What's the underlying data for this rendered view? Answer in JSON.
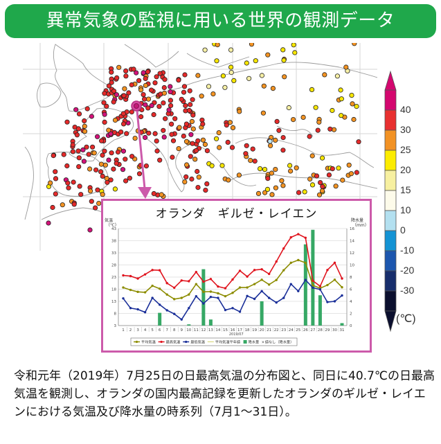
{
  "header": {
    "title": "異常気象の監視に用いる世界の観測データ",
    "color": "#1fa84b"
  },
  "map": {
    "description": "2019-07-25 daily maximum temperature station distribution over Europe",
    "highlight_station": "オランダ ギルゼ・レイエン",
    "highlight_color": "#cc3d99",
    "arrow_color": "#cc5aaa"
  },
  "colorbar": {
    "unit": "(℃)",
    "labels": [
      "40",
      "30",
      "25",
      "20",
      "15",
      "10",
      "0",
      "-10",
      "-20",
      "-30"
    ],
    "colors": [
      "#d4076f",
      "#e83030",
      "#f29224",
      "#fcec00",
      "#f7f0a0",
      "#fdfbea",
      "#b3e0f0",
      "#1493d4",
      "#1c56ae",
      "#172e6c",
      "#0b0f2e"
    ]
  },
  "inset": {
    "title": "オランダ　ギルゼ・レイエン",
    "left_axis_label": "気温\n（℃）",
    "right_axis_label": "降水量\n（mm）",
    "x_sublabel": "2019/07",
    "legend": [
      {
        "label": "平均気温",
        "color": "#8c8c00"
      },
      {
        "label": "最高気温",
        "color": "#e0141e"
      },
      {
        "label": "最低気温",
        "color": "#1a2f99"
      },
      {
        "label": "平均気温平年値",
        "color": "#c8c84a"
      },
      {
        "label": "降水量",
        "color": "#36a865"
      },
      {
        "label": "値なし（降水量）",
        "color": "#36a865"
      }
    ]
  },
  "chart_data": {
    "type": "line",
    "title": "オランダ　ギルゼ・レイエン",
    "xlabel": "2019/07",
    "ylabel": "気温（℃）",
    "y2label": "降水量（mm）",
    "ylim": [
      3,
      43
    ],
    "y2lim": [
      0,
      16
    ],
    "yticks": [
      3,
      8,
      13,
      18,
      23,
      28,
      33,
      38,
      43
    ],
    "y2ticks": [
      0,
      2,
      4,
      6,
      8,
      10,
      12,
      14,
      16
    ],
    "grid": true,
    "legend_position": "bottom",
    "x": [
      1,
      2,
      3,
      4,
      5,
      6,
      7,
      8,
      9,
      10,
      11,
      12,
      13,
      14,
      15,
      16,
      17,
      18,
      19,
      20,
      21,
      22,
      23,
      24,
      25,
      26,
      27,
      28,
      29,
      30,
      31
    ],
    "series": [
      {
        "name": "最高気温",
        "type": "line",
        "axis": "left",
        "color": "#e0141e",
        "values": [
          23.7,
          23.4,
          22.4,
          24.1,
          25.9,
          25.8,
          20.5,
          18.6,
          21.6,
          21.3,
          25.1,
          21.1,
          22.2,
          19.1,
          18.4,
          22.0,
          25.6,
          23.2,
          25.9,
          26.2,
          24.3,
          29.4,
          34.8,
          39.4,
          40.7,
          39.2,
          21.5,
          19.2,
          25.9,
          28.9,
          22.4
        ]
      },
      {
        "name": "平均気温",
        "type": "line",
        "axis": "left",
        "color": "#8c8c00",
        "values": [
          18.7,
          17.7,
          16.9,
          16.7,
          19.4,
          18.2,
          15.8,
          13.9,
          14.4,
          15.8,
          20.1,
          16.9,
          17.0,
          16.3,
          15.1,
          16.5,
          18.7,
          18.7,
          20.1,
          21.9,
          19.9,
          21.8,
          25.8,
          28.9,
          30.0,
          28.9,
          19.6,
          18.4,
          19.7,
          21.9,
          18.8
        ]
      },
      {
        "name": "最低気温",
        "type": "line",
        "axis": "left",
        "color": "#1a2f99",
        "values": [
          14.2,
          10.2,
          9.7,
          8.5,
          14.4,
          11.6,
          9.3,
          7.8,
          5.5,
          10.2,
          15.1,
          12.1,
          14.8,
          14.4,
          9.4,
          10.2,
          8.7,
          15.2,
          14.0,
          17.2,
          14.4,
          12.5,
          14.4,
          20.1,
          17.2,
          21.8,
          18.6,
          17.9,
          12.7,
          13.0,
          15.4
        ]
      },
      {
        "name": "降水量",
        "type": "bar",
        "axis": "right",
        "color": "#36a865",
        "values": [
          0,
          0,
          0,
          0,
          0,
          2.1,
          0,
          0,
          0,
          0.2,
          0,
          9.3,
          1.0,
          0,
          0,
          0,
          0,
          0,
          0,
          4.0,
          0,
          0,
          0,
          0,
          0,
          13.4,
          15.8,
          5.0,
          0,
          0,
          0.4
        ]
      }
    ]
  },
  "caption": {
    "text": "令和元年（2019年）7月25日の日最高気温の分布図と、同日に40.7℃の日最高気温を観測し、オランダの国内最高記録を更新したオランダのギルゼ・レイエンにおける気温及び降水量の時系列（7月1～31日）。"
  }
}
